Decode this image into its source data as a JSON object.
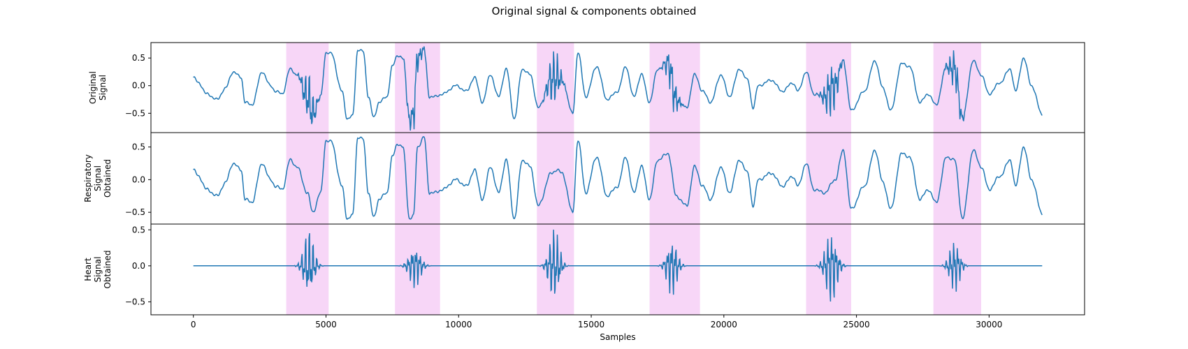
{
  "figure": {
    "title": "Original signal & components obtained",
    "xlabel": "Samples",
    "x_ticks": [
      0,
      5000,
      10000,
      15000,
      20000,
      25000,
      30000
    ],
    "xlim": [
      -1600,
      33600
    ],
    "line_color": "#1f77b4",
    "highlight_color": "#f7d6f7"
  },
  "chart_data": [
    {
      "type": "line",
      "ylabel": [
        "Original",
        "Signal"
      ],
      "ylim": [
        -0.85,
        0.78
      ],
      "y_ticks": [
        0.5,
        0.0,
        -0.5
      ],
      "y_tick_labels": [
        "0.5",
        "0.0",
        "−0.5"
      ],
      "series": [
        {
          "role": "respiratory+heart"
        }
      ]
    },
    {
      "type": "line",
      "ylabel": [
        "Respiratory",
        "Signal",
        "Obtained"
      ],
      "ylim": [
        -0.68,
        0.72
      ],
      "y_ticks": [
        0.5,
        0.0,
        -0.5
      ],
      "y_tick_labels": [
        "0.5",
        "0.0",
        "−0.5"
      ],
      "series": [
        {
          "role": "respiratory"
        }
      ]
    },
    {
      "type": "line",
      "ylabel": [
        "Heart",
        "Signal",
        "Obtained"
      ],
      "ylim": [
        -0.68,
        0.58
      ],
      "y_ticks": [
        0.5,
        0.0,
        -0.5
      ],
      "y_tick_labels": [
        "0.5",
        "0.0",
        "−0.5"
      ],
      "series": [
        {
          "role": "heart"
        }
      ]
    }
  ],
  "highlight_regions": [
    [
      3500,
      5100
    ],
    [
      7600,
      9300
    ],
    [
      12950,
      14350
    ],
    [
      17200,
      19100
    ],
    [
      23100,
      24800
    ],
    [
      27900,
      29700
    ]
  ],
  "respiratory_keypoints": [
    [
      0,
      0.15
    ],
    [
      200,
      0.05
    ],
    [
      500,
      -0.15
    ],
    [
      900,
      -0.25
    ],
    [
      1200,
      -0.05
    ],
    [
      1500,
      0.25
    ],
    [
      1800,
      0.15
    ],
    [
      1950,
      -0.3
    ],
    [
      2200,
      -0.35
    ],
    [
      2600,
      0.25
    ],
    [
      2900,
      0.0
    ],
    [
      3100,
      -0.1
    ],
    [
      3350,
      -0.15
    ],
    [
      3650,
      0.3
    ],
    [
      3900,
      0.2
    ],
    [
      4300,
      -0.2
    ],
    [
      4500,
      -0.5
    ],
    [
      4800,
      -0.2
    ],
    [
      5000,
      0.6
    ],
    [
      5200,
      0.58
    ],
    [
      5600,
      -0.1
    ],
    [
      5800,
      -0.6
    ],
    [
      6000,
      -0.55
    ],
    [
      6200,
      0.65
    ],
    [
      6400,
      0.62
    ],
    [
      6600,
      -0.2
    ],
    [
      6800,
      -0.58
    ],
    [
      7000,
      -0.3
    ],
    [
      7300,
      -0.2
    ],
    [
      7500,
      0.35
    ],
    [
      7700,
      0.55
    ],
    [
      7900,
      0.5
    ],
    [
      8150,
      -0.6
    ],
    [
      8300,
      -0.55
    ],
    [
      8450,
      0.5
    ],
    [
      8700,
      0.65
    ],
    [
      8900,
      -0.2
    ],
    [
      9100,
      -0.2
    ],
    [
      9400,
      -0.15
    ],
    [
      9900,
      0.0
    ],
    [
      10300,
      -0.1
    ],
    [
      10600,
      0.15
    ],
    [
      10900,
      -0.3
    ],
    [
      11200,
      0.2
    ],
    [
      11500,
      -0.2
    ],
    [
      11800,
      0.3
    ],
    [
      12100,
      -0.6
    ],
    [
      12400,
      0.3
    ],
    [
      12700,
      0.2
    ],
    [
      13000,
      -0.4
    ],
    [
      13500,
      0.1
    ],
    [
      13700,
      0.15
    ],
    [
      13900,
      0.1
    ],
    [
      14300,
      -0.5
    ],
    [
      14500,
      0.6
    ],
    [
      14800,
      -0.2
    ],
    [
      15200,
      0.35
    ],
    [
      15600,
      -0.25
    ],
    [
      16000,
      -0.1
    ],
    [
      16300,
      0.35
    ],
    [
      16600,
      -0.2
    ],
    [
      16900,
      0.2
    ],
    [
      17200,
      -0.3
    ],
    [
      17500,
      0.3
    ],
    [
      17900,
      0.4
    ],
    [
      18200,
      -0.25
    ],
    [
      18600,
      -0.4
    ],
    [
      18900,
      0.2
    ],
    [
      19200,
      -0.1
    ],
    [
      19500,
      -0.3
    ],
    [
      19900,
      0.2
    ],
    [
      20200,
      -0.2
    ],
    [
      20600,
      0.3
    ],
    [
      20900,
      0.1
    ],
    [
      21100,
      -0.4
    ],
    [
      21300,
      0.0
    ],
    [
      21800,
      0.1
    ],
    [
      22200,
      -0.1
    ],
    [
      22600,
      0.05
    ],
    [
      22800,
      -0.1
    ],
    [
      23100,
      0.25
    ],
    [
      23400,
      -0.15
    ],
    [
      23800,
      -0.2
    ],
    [
      24200,
      0.0
    ],
    [
      24500,
      0.45
    ],
    [
      24800,
      -0.45
    ],
    [
      25300,
      -0.1
    ],
    [
      25700,
      0.45
    ],
    [
      26000,
      -0.05
    ],
    [
      26300,
      -0.45
    ],
    [
      26700,
      0.4
    ],
    [
      27000,
      0.35
    ],
    [
      27400,
      -0.3
    ],
    [
      27700,
      -0.15
    ],
    [
      28000,
      -0.35
    ],
    [
      28400,
      0.35
    ],
    [
      28700,
      0.3
    ],
    [
      29000,
      -0.6
    ],
    [
      29400,
      0.45
    ],
    [
      29700,
      0.2
    ],
    [
      30000,
      -0.15
    ],
    [
      30400,
      0.05
    ],
    [
      30800,
      0.3
    ],
    [
      31000,
      -0.1
    ],
    [
      31300,
      0.5
    ],
    [
      31600,
      0.0
    ],
    [
      32000,
      -0.52
    ]
  ],
  "heart_bursts": [
    {
      "center": 4350,
      "width": 900,
      "amplitude": 0.55
    },
    {
      "center": 8350,
      "width": 1000,
      "amplitude": 0.32
    },
    {
      "center": 13600,
      "width": 900,
      "amplitude": 0.6
    },
    {
      "center": 18050,
      "width": 900,
      "amplitude": 0.45
    },
    {
      "center": 24050,
      "width": 1000,
      "amplitude": 0.58
    },
    {
      "center": 28700,
      "width": 900,
      "amplitude": 0.4
    }
  ]
}
